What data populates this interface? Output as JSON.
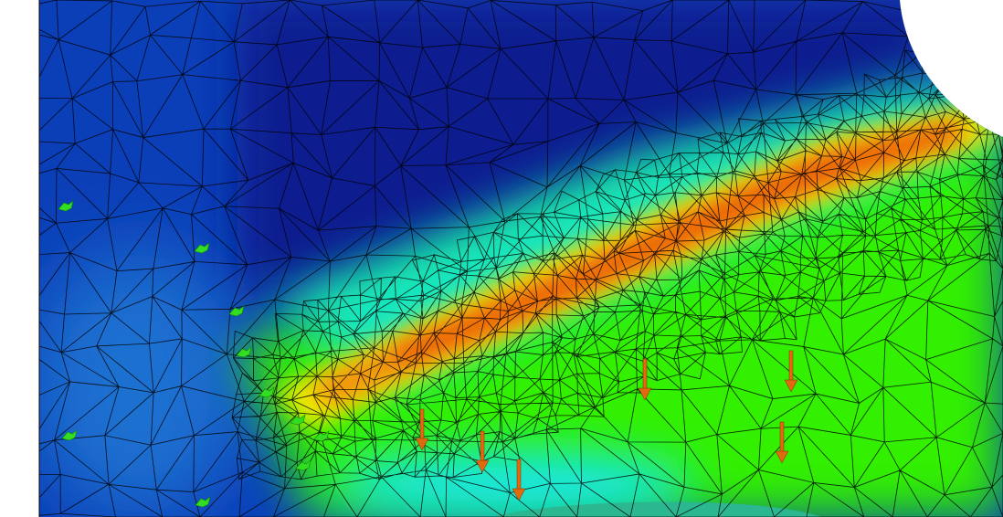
{
  "viewport": {
    "background": "#ffffff",
    "colors": {
      "deep_blue": "#0a1f8f",
      "blue": "#0b3fb8",
      "cyan": "#19e6f0",
      "green": "#33f000",
      "yellow": "#f5e800",
      "orange": "#f08a10",
      "red": "#e83a10",
      "mesh_line": "#000000",
      "load_arrow": "#e06a10",
      "constraint_marker": "#33dd22"
    },
    "icons": {
      "load": "arrow-down-icon",
      "constraint": "fixed-support-icon"
    }
  }
}
